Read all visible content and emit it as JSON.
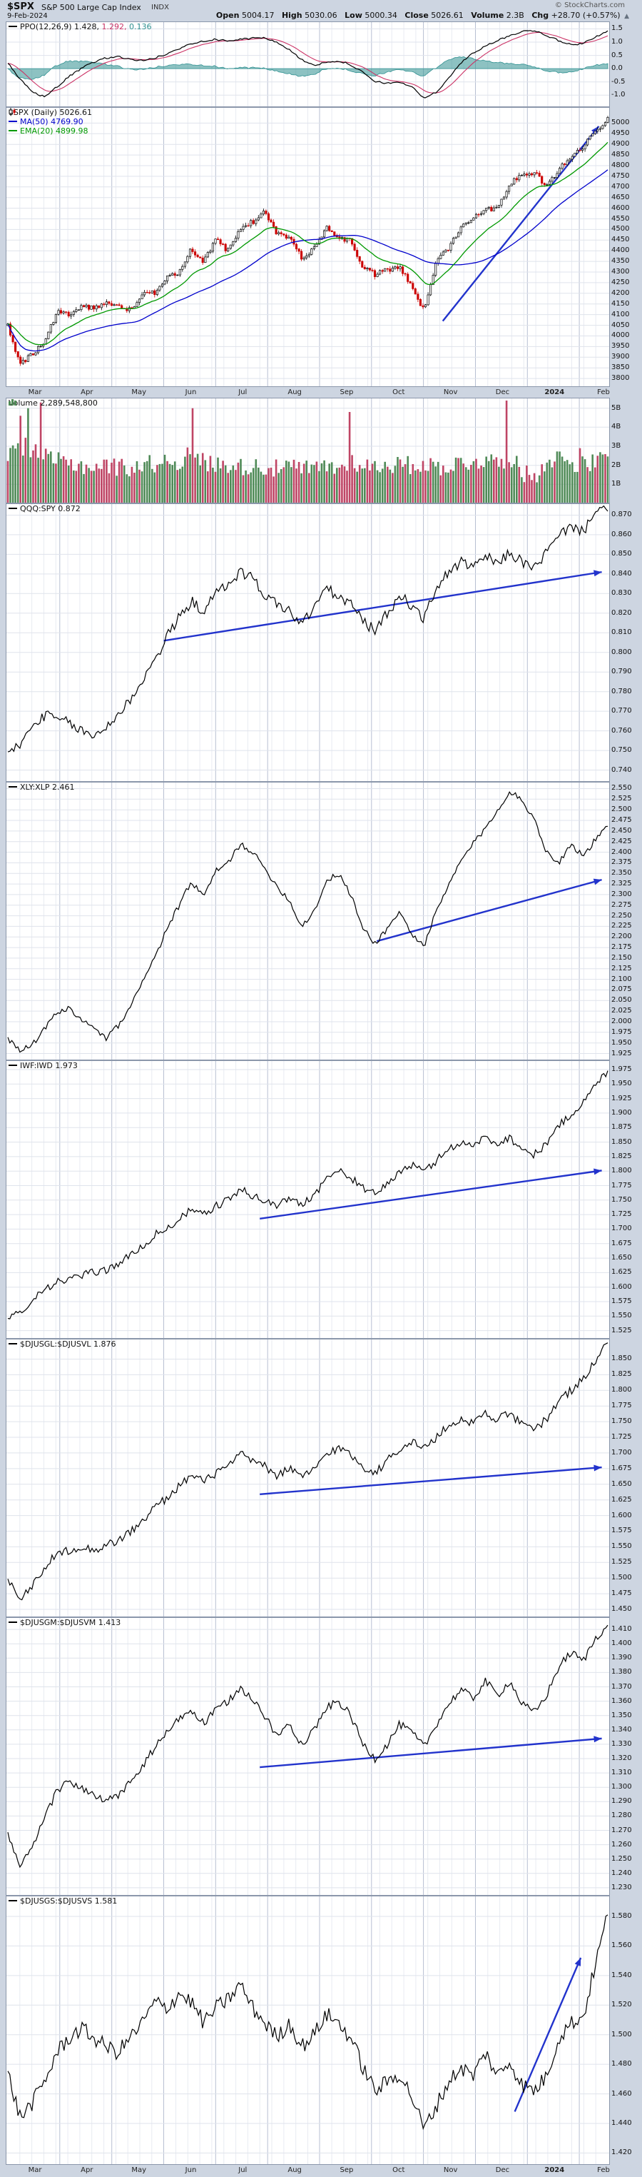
{
  "header": {
    "symbol": "$SPX",
    "name": "S&P 500 Large Cap Index",
    "exchange": "INDX",
    "date": "9-Feb-2024",
    "credit": "© StockCharts.com",
    "quote": {
      "open_label": "Open",
      "open": "5004.17",
      "high_label": "High",
      "high": "5030.06",
      "low_label": "Low",
      "low": "5000.34",
      "close_label": "Close",
      "close": "5026.61",
      "volume_label": "Volume",
      "volume": "2.3B",
      "chg_label": "Chg",
      "chg": "+28.70 (+0.57%)",
      "direction": "▲"
    }
  },
  "axis": {
    "months": [
      "Mar",
      "Apr",
      "May",
      "Jun",
      "Jul",
      "Aug",
      "Sep",
      "Oct",
      "Nov",
      "Dec",
      "2024",
      "Feb"
    ],
    "year_label_index": 10
  },
  "colors": {
    "page_bg": "#cdd5e1",
    "plot_bg": "#ffffff",
    "grid_h": "#dfe3ec",
    "grid_week": "#e8ebf2",
    "grid_month": "#b7bfd2",
    "border": "#8b97ab",
    "up_candle": "#000000",
    "down_candle": "#cc0000",
    "ma50": "#0000cc",
    "ema20": "#009900",
    "vol_up": "#4f8a57",
    "vol_down": "#bf4565",
    "ppo_line": "#000000",
    "ppo_signal": "#cc3366",
    "ppo_hist": "#2f9090",
    "ratio_line": "#000000",
    "trend_arrow": "#2233cc",
    "legend_text": "#111111"
  },
  "chart_data": [
    {
      "id": "ppo",
      "type": "oscillator",
      "legend": {
        "label": "PPO(12,26,9)",
        "v1": "1.428,",
        "v2": "1.292,",
        "v3": "0.136"
      },
      "ticks": {
        "max": 1.5,
        "min": -1.0,
        "step": 0.5,
        "decimals": 1,
        "suffix": ""
      },
      "ylim": [
        -1.45,
        1.78
      ],
      "anchors": [
        0.2,
        -0.4,
        -0.9,
        -1.05,
        -0.7,
        -0.3,
        0.0,
        0.25,
        0.4,
        0.45,
        0.35,
        0.3,
        0.4,
        0.55,
        0.75,
        0.95,
        1.05,
        1.1,
        1.05,
        1.1,
        1.15,
        1.15,
        1.0,
        0.7,
        0.35,
        0.1,
        0.25,
        0.3,
        0.15,
        -0.15,
        -0.5,
        -0.55,
        -0.5,
        -0.7,
        -1.1,
        -0.9,
        -0.35,
        0.2,
        0.6,
        0.85,
        1.05,
        1.25,
        1.4,
        1.45,
        1.25,
        1.05,
        0.9,
        0.95,
        1.2,
        1.428
      ],
      "last": 1.428
    },
    {
      "id": "price",
      "type": "candlestick",
      "legend": {
        "title": "$SPX (Daily) 5026.61",
        "ma": "MA(50) 4769.90",
        "ema": "EMA(20) 4899.98"
      },
      "ticks": {
        "max": 5000,
        "min": 3800,
        "step": 50,
        "decimals": 0,
        "suffix": ""
      },
      "ylim": [
        3760,
        5075
      ],
      "weekly_close": [
        4045,
        3862,
        3917,
        3971,
        4109,
        4105,
        4138,
        4134,
        4157,
        4136,
        4124,
        4192,
        4205,
        4282,
        4299,
        4410,
        4348,
        4450,
        4399,
        4505,
        4536,
        4582,
        4478,
        4464,
        4370,
        4406,
        4516,
        4457,
        4450,
        4320,
        4288,
        4308,
        4328,
        4224,
        4117,
        4358,
        4415,
        4514,
        4559,
        4594,
        4604,
        4719,
        4754,
        4770,
        4697,
        4784,
        4840,
        4891,
        4959,
        5027
      ],
      "last": 5026.61,
      "trend": {
        "from": [
          0.725,
          4070
        ],
        "to": [
          0.985,
          4985
        ]
      }
    },
    {
      "id": "volume",
      "type": "bar",
      "legend": {
        "label": "Volume 2,289,548,800"
      },
      "ticks": {
        "max": 5,
        "min": 1,
        "step": 1,
        "decimals": 0,
        "suffix": "B"
      },
      "ylim": [
        0,
        5.55
      ],
      "weekly_avg_b": [
        2.6,
        3.0,
        2.9,
        2.4,
        2.2,
        2.1,
        2.0,
        1.9,
        2.0,
        1.9,
        1.9,
        2.0,
        2.1,
        2.3,
        2.2,
        2.6,
        2.2,
        2.0,
        2.1,
        1.9,
        2.0,
        1.9,
        1.8,
        1.9,
        1.8,
        1.8,
        2.0,
        1.8,
        2.3,
        2.0,
        1.9,
        2.1,
        2.0,
        2.0,
        2.1,
        1.9,
        2.0,
        2.1,
        2.2,
        2.3,
        2.1,
        2.5,
        1.6,
        1.4,
        2.3,
        2.4,
        2.2,
        2.0,
        2.2,
        2.3
      ],
      "spikes": [
        {
          "t": 0.02,
          "v": 4.6
        },
        {
          "t": 0.035,
          "v": 5.0
        },
        {
          "t": 0.055,
          "v": 5.3
        },
        {
          "t": 0.31,
          "v": 5.0
        },
        {
          "t": 0.57,
          "v": 4.8
        },
        {
          "t": 0.83,
          "v": 5.4
        },
        {
          "t": 0.955,
          "v": 2.9
        }
      ]
    },
    {
      "id": "qqq",
      "type": "ratio",
      "legend": {
        "symbol": "QQQ:SPY",
        "value": "0.872"
      },
      "ticks": {
        "max": 0.87,
        "min": 0.74,
        "step": 0.01,
        "decimals": 3,
        "suffix": ""
      },
      "ylim": [
        0.734,
        0.876
      ],
      "anchors": [
        0.748,
        0.753,
        0.762,
        0.768,
        0.766,
        0.764,
        0.76,
        0.757,
        0.762,
        0.768,
        0.776,
        0.786,
        0.796,
        0.808,
        0.818,
        0.826,
        0.821,
        0.83,
        0.835,
        0.841,
        0.838,
        0.829,
        0.825,
        0.821,
        0.814,
        0.823,
        0.833,
        0.828,
        0.825,
        0.816,
        0.811,
        0.82,
        0.829,
        0.824,
        0.817,
        0.833,
        0.841,
        0.846,
        0.843,
        0.849,
        0.845,
        0.851,
        0.846,
        0.843,
        0.851,
        0.859,
        0.865,
        0.861,
        0.874,
        0.872
      ],
      "last": 0.872,
      "trend": {
        "from": [
          0.26,
          0.806
        ],
        "to": [
          0.99,
          0.841
        ]
      }
    },
    {
      "id": "xly",
      "type": "ratio",
      "legend": {
        "symbol": "XLY:XLP",
        "value": "2.461"
      },
      "ticks": {
        "max": 2.55,
        "min": 1.925,
        "step": 0.025,
        "decimals": 3,
        "suffix": ""
      },
      "ylim": [
        1.909,
        2.566
      ],
      "anchors": [
        1.96,
        1.93,
        1.945,
        1.985,
        2.02,
        2.03,
        2.005,
        1.985,
        1.96,
        1.99,
        2.03,
        2.1,
        2.15,
        2.22,
        2.275,
        2.33,
        2.295,
        2.355,
        2.375,
        2.42,
        2.4,
        2.36,
        2.32,
        2.285,
        2.225,
        2.26,
        2.33,
        2.35,
        2.3,
        2.22,
        2.185,
        2.22,
        2.26,
        2.205,
        2.18,
        2.26,
        2.32,
        2.38,
        2.42,
        2.455,
        2.5,
        2.545,
        2.52,
        2.48,
        2.4,
        2.375,
        2.42,
        2.39,
        2.43,
        2.461
      ],
      "last": 2.461,
      "trend": {
        "from": [
          0.615,
          2.19
        ],
        "to": [
          0.99,
          2.335
        ]
      }
    },
    {
      "id": "iwf",
      "type": "ratio",
      "legend": {
        "symbol": "IWF:IWD",
        "value": "1.973"
      },
      "ticks": {
        "max": 1.975,
        "min": 1.525,
        "step": 0.025,
        "decimals": 3,
        "suffix": ""
      },
      "ylim": [
        1.511,
        1.991
      ],
      "anchors": [
        1.545,
        1.558,
        1.578,
        1.598,
        1.608,
        1.613,
        1.62,
        1.625,
        1.63,
        1.64,
        1.654,
        1.67,
        1.69,
        1.7,
        1.718,
        1.733,
        1.724,
        1.74,
        1.75,
        1.768,
        1.758,
        1.748,
        1.74,
        1.754,
        1.744,
        1.758,
        1.788,
        1.8,
        1.79,
        1.77,
        1.76,
        1.778,
        1.8,
        1.81,
        1.798,
        1.818,
        1.838,
        1.85,
        1.844,
        1.858,
        1.848,
        1.858,
        1.838,
        1.828,
        1.848,
        1.878,
        1.898,
        1.918,
        1.948,
        1.973
      ],
      "last": 1.973,
      "trend": {
        "from": [
          0.42,
          1.718
        ],
        "to": [
          0.99,
          1.801
        ]
      }
    },
    {
      "id": "gl",
      "type": "ratio",
      "legend": {
        "symbol": "$DJUSGL:$DJUSVL",
        "value": "1.876"
      },
      "ticks": {
        "max": 1.85,
        "min": 1.45,
        "step": 0.025,
        "decimals": 3,
        "suffix": ""
      },
      "ylim": [
        1.4375,
        1.8825
      ],
      "anchors": [
        1.5,
        1.468,
        1.488,
        1.518,
        1.538,
        1.545,
        1.55,
        1.545,
        1.552,
        1.56,
        1.574,
        1.59,
        1.614,
        1.628,
        1.648,
        1.664,
        1.654,
        1.668,
        1.678,
        1.698,
        1.688,
        1.678,
        1.664,
        1.676,
        1.66,
        1.674,
        1.698,
        1.708,
        1.698,
        1.678,
        1.668,
        1.688,
        1.708,
        1.718,
        1.708,
        1.724,
        1.744,
        1.754,
        1.748,
        1.764,
        1.754,
        1.764,
        1.744,
        1.738,
        1.754,
        1.784,
        1.8,
        1.818,
        1.848,
        1.876
      ],
      "last": 1.876,
      "trend": {
        "from": [
          0.42,
          1.634
        ],
        "to": [
          0.99,
          1.677
        ]
      }
    },
    {
      "id": "gm",
      "type": "ratio",
      "legend": {
        "symbol": "$DJUSGM:$DJUSVM",
        "value": "1.413"
      },
      "ticks": {
        "max": 1.41,
        "min": 1.23,
        "step": 0.01,
        "decimals": 3,
        "suffix": ""
      },
      "ylim": [
        1.2245,
        1.4185
      ],
      "anchors": [
        1.268,
        1.244,
        1.258,
        1.278,
        1.298,
        1.304,
        1.3,
        1.294,
        1.29,
        1.294,
        1.304,
        1.314,
        1.328,
        1.338,
        1.348,
        1.354,
        1.344,
        1.354,
        1.36,
        1.37,
        1.36,
        1.35,
        1.335,
        1.345,
        1.33,
        1.34,
        1.355,
        1.36,
        1.35,
        1.33,
        1.32,
        1.33,
        1.344,
        1.338,
        1.328,
        1.344,
        1.358,
        1.368,
        1.362,
        1.374,
        1.364,
        1.374,
        1.358,
        1.352,
        1.364,
        1.384,
        1.394,
        1.388,
        1.404,
        1.413
      ],
      "last": 1.413,
      "trend": {
        "from": [
          0.42,
          1.314
        ],
        "to": [
          0.99,
          1.334
        ]
      }
    },
    {
      "id": "gs",
      "type": "ratio",
      "legend": {
        "symbol": "$DJUSGS:$DJUSVS",
        "value": "1.581"
      },
      "ticks": {
        "max": 1.58,
        "min": 1.42,
        "step": 0.02,
        "decimals": 3,
        "suffix": ""
      },
      "ylim": [
        1.412,
        1.594
      ],
      "anchors": [
        1.474,
        1.444,
        1.454,
        1.468,
        1.488,
        1.498,
        1.504,
        1.498,
        1.492,
        1.488,
        1.498,
        1.508,
        1.522,
        1.518,
        1.528,
        1.522,
        1.508,
        1.518,
        1.524,
        1.534,
        1.518,
        1.508,
        1.498,
        1.508,
        1.492,
        1.5,
        1.514,
        1.508,
        1.498,
        1.478,
        1.462,
        1.468,
        1.474,
        1.458,
        1.436,
        1.452,
        1.468,
        1.478,
        1.472,
        1.488,
        1.472,
        1.482,
        1.466,
        1.462,
        1.472,
        1.498,
        1.508,
        1.512,
        1.548,
        1.581
      ],
      "last": 1.581,
      "trend": {
        "from": [
          0.845,
          1.448
        ],
        "to": [
          0.955,
          1.552
        ]
      }
    }
  ]
}
